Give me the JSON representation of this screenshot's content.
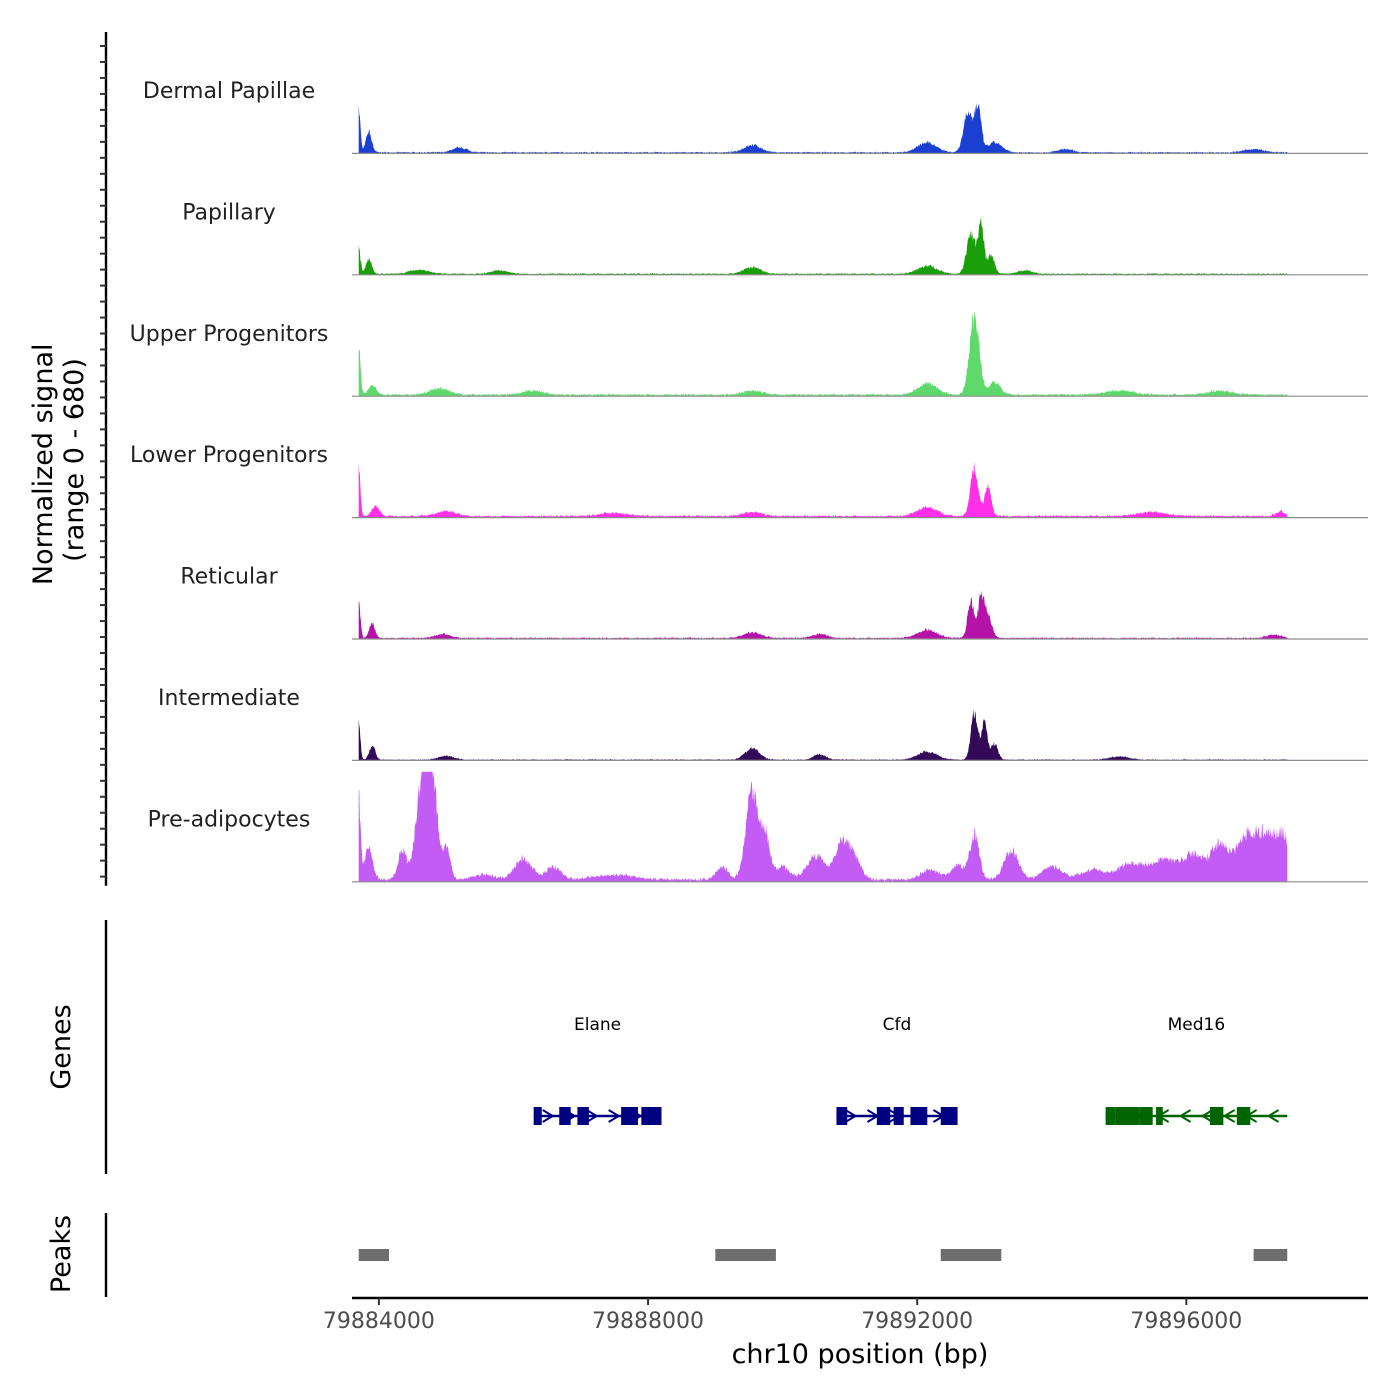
{
  "chart_data": {
    "type": "area",
    "title": "",
    "chromosome": "chr10",
    "xlabel": "chr10 position (bp)",
    "ylabel": "Normalized signal\n(range 0 - 680)",
    "ylabel_lines": [
      "Normalized signal",
      "(range 0 - 680)"
    ],
    "ylim": [
      0,
      680
    ],
    "xlim": [
      79883600,
      79898700
    ],
    "data_range": [
      79883700,
      79897500
    ],
    "x_ticks": [
      79884000,
      79888000,
      79892000,
      79896000
    ],
    "x_tick_labels": [
      "79884000",
      "79888000",
      "79892000",
      "79896000"
    ],
    "series": [
      {
        "name": "Dermal Papillae",
        "color": "#1a3fd1",
        "peaks": [
          [
            79883700,
            270,
            35
          ],
          [
            79883850,
            130,
            60
          ],
          [
            79885200,
            30,
            150
          ],
          [
            79889550,
            45,
            180
          ],
          [
            79892150,
            60,
            200
          ],
          [
            79892750,
            240,
            90
          ],
          [
            79892900,
            280,
            70
          ],
          [
            79893150,
            60,
            150
          ],
          [
            79894200,
            20,
            150
          ],
          [
            79897000,
            20,
            200
          ]
        ],
        "noise": 8
      },
      {
        "name": "Papillary",
        "color": "#1a9e0a",
        "peaks": [
          [
            79883700,
            170,
            35
          ],
          [
            79883850,
            90,
            60
          ],
          [
            79884600,
            25,
            200
          ],
          [
            79885800,
            20,
            180
          ],
          [
            79889550,
            40,
            180
          ],
          [
            79892150,
            50,
            200
          ],
          [
            79892800,
            250,
            90
          ],
          [
            79892950,
            300,
            60
          ],
          [
            79893100,
            120,
            70
          ],
          [
            79893600,
            20,
            150
          ]
        ],
        "noise": 8
      },
      {
        "name": "Upper Progenitors",
        "color": "#5fd86c",
        "peaks": [
          [
            79883700,
            310,
            35
          ],
          [
            79883900,
            60,
            80
          ],
          [
            79884900,
            40,
            200
          ],
          [
            79886300,
            25,
            200
          ],
          [
            79889550,
            25,
            200
          ],
          [
            79892150,
            70,
            200
          ],
          [
            79892850,
            480,
            100
          ],
          [
            79893150,
            80,
            120
          ],
          [
            79895000,
            25,
            300
          ],
          [
            79896500,
            25,
            250
          ]
        ],
        "noise": 12
      },
      {
        "name": "Lower Progenitors",
        "color": "#ff2fe8",
        "peaks": [
          [
            79883700,
            300,
            35
          ],
          [
            79883950,
            60,
            80
          ],
          [
            79885000,
            30,
            200
          ],
          [
            79887500,
            20,
            300
          ],
          [
            79889550,
            25,
            200
          ],
          [
            79892150,
            60,
            200
          ],
          [
            79892850,
            300,
            80
          ],
          [
            79893050,
            180,
            70
          ],
          [
            79895500,
            25,
            300
          ],
          [
            79897400,
            30,
            100
          ]
        ],
        "noise": 12
      },
      {
        "name": "Reticular",
        "color": "#b513a8",
        "peaks": [
          [
            79883700,
            230,
            35
          ],
          [
            79883900,
            90,
            60
          ],
          [
            79884950,
            25,
            150
          ],
          [
            79889550,
            35,
            180
          ],
          [
            79890550,
            25,
            150
          ],
          [
            79892150,
            50,
            200
          ],
          [
            79892800,
            230,
            70
          ],
          [
            79892950,
            240,
            60
          ],
          [
            79893050,
            150,
            80
          ],
          [
            79897300,
            20,
            150
          ]
        ],
        "noise": 8
      },
      {
        "name": "Intermediate",
        "color": "#320a58",
        "peaks": [
          [
            79883700,
            220,
            35
          ],
          [
            79883900,
            90,
            60
          ],
          [
            79885000,
            25,
            150
          ],
          [
            79889550,
            70,
            150
          ],
          [
            79890550,
            35,
            120
          ],
          [
            79892150,
            50,
            200
          ],
          [
            79892850,
            300,
            70
          ],
          [
            79893000,
            240,
            60
          ],
          [
            79893150,
            100,
            70
          ],
          [
            79895000,
            20,
            200
          ]
        ],
        "noise": 6
      },
      {
        "name": "Pre-adipocytes",
        "color": "#c35bf5",
        "peaks": [
          [
            79883700,
            500,
            40
          ],
          [
            79883850,
            200,
            80
          ],
          [
            79884350,
            180,
            90
          ],
          [
            79884650,
            650,
            130
          ],
          [
            79884800,
            550,
            100
          ],
          [
            79885000,
            200,
            80
          ],
          [
            79885550,
            30,
            200
          ],
          [
            79886150,
            130,
            180
          ],
          [
            79886600,
            80,
            150
          ],
          [
            79887500,
            30,
            400
          ],
          [
            79889100,
            80,
            120
          ],
          [
            79889550,
            560,
            130
          ],
          [
            79889750,
            250,
            90
          ],
          [
            79890000,
            80,
            150
          ],
          [
            79890500,
            140,
            200
          ],
          [
            79890900,
            240,
            150
          ],
          [
            79891100,
            100,
            120
          ],
          [
            79892200,
            60,
            200
          ],
          [
            79892600,
            90,
            120
          ],
          [
            79892850,
            280,
            100
          ],
          [
            79893400,
            180,
            150
          ],
          [
            79894000,
            80,
            200
          ],
          [
            79894600,
            60,
            250
          ],
          [
            79895200,
            100,
            300
          ],
          [
            79895700,
            120,
            250
          ],
          [
            79896100,
            150,
            200
          ],
          [
            79896500,
            220,
            200
          ],
          [
            79896900,
            260,
            200
          ],
          [
            79897200,
            250,
            200
          ],
          [
            79897450,
            230,
            150
          ]
        ],
        "noise": 18
      }
    ],
    "genes": [
      {
        "name": "Elane",
        "strand": "+",
        "color": "#000080",
        "start": 79886300,
        "end": 79888200,
        "exons": [
          [
            79886300,
            79886420
          ],
          [
            79886680,
            79886850
          ],
          [
            79886950,
            79887120
          ],
          [
            79887600,
            79887850
          ],
          [
            79887900,
            79888200
          ]
        ]
      },
      {
        "name": "Cfd",
        "strand": "+",
        "color": "#000080",
        "start": 79890800,
        "end": 79892600,
        "exons": [
          [
            79890800,
            79890960
          ],
          [
            79891400,
            79891600
          ],
          [
            79891650,
            79891800
          ],
          [
            79891900,
            79892150
          ],
          [
            79892350,
            79892600
          ]
        ]
      },
      {
        "name": "Med16",
        "strand": "-",
        "color": "#006400",
        "start": 79894800,
        "end": 79897500,
        "exons": [
          [
            79894800,
            79894950
          ],
          [
            79894950,
            79895300
          ],
          [
            79895300,
            79895500
          ],
          [
            79895550,
            79895650
          ],
          [
            79896350,
            79896550
          ],
          [
            79896750,
            79896950
          ]
        ]
      }
    ],
    "peaks": [
      [
        79883700,
        79884150
      ],
      [
        79889000,
        79889900
      ],
      [
        79892350,
        79893250
      ],
      [
        79897000,
        79897500
      ]
    ],
    "track_labels": {
      "genes": "Genes",
      "peaks": "Peaks"
    }
  }
}
